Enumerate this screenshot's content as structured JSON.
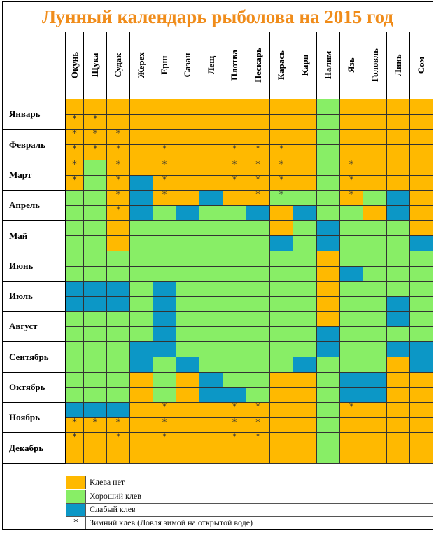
{
  "title": "Лунный календарь рыболова на 2015 год",
  "fish": [
    "Окунь",
    "Щука",
    "Судак",
    "Жерех",
    "Ерш",
    "Сазан",
    "Лещ",
    "Плотва",
    "Пескарь",
    "Карась",
    "Карп",
    "Налим",
    "Язь",
    "Головль",
    "Линь",
    "Сом"
  ],
  "months": [
    "Январь",
    "Февраль",
    "Март",
    "Апрель",
    "Май",
    "Июнь",
    "Июль",
    "Август",
    "Сентябрь",
    "Октябрь",
    "Ноябрь",
    "Декабрь"
  ],
  "grid_rows": [
    "NNNNNNNNNNNGNNNN",
    "NNNNNNNNNNNGNNNN",
    "NNNNNNNNNNNGNNNN",
    "NNNNNNNNNNNGNNNN",
    "NGNNNNNNNNNGNNNN",
    "NGNWNNNNNNNGNNNN",
    "GGNWNNWNNGGGNGWN",
    "GGNWGWGGWNWGGNWN",
    "GGNGGGGGGNGWGGGN",
    "GGNGGGGGGWGWGGGW",
    "GGGGGGGGGGGNGGGG",
    "GGGGGGGGGGGNWGGG",
    "WWWGWGGGGGGNGGGG",
    "WWWGWGGGGGGNGGWG",
    "GGGGWGGGGGGNGGWG",
    "GGGGWGGGGGGWGGGG",
    "GGGWWGGGGGGWGGWW",
    "GGGWGWGGGGWGGGNW",
    "GGGNGNWGGNNGWWNN",
    "GGGNGNWWGNNGWWNN",
    "WWWNNNNNNNNGNNNN",
    "NNNNNNNNNNNGNNNN",
    "NNNNNNNNNNNGNNNN",
    "NNNNNNNNNNNGNNNN"
  ],
  "star_rows": [
    "0000000000000000",
    "1100000000000000",
    "1110000000000000",
    "1110100111000000",
    "1010100111001000",
    "1010100111001000",
    "0010100011001000",
    "0010000000000000",
    "0000000000000000",
    "0000000000000000",
    "0000000000000000",
    "0000000000000000",
    "0000000000000000",
    "0000000000000000",
    "0000000000000000",
    "0000000000000000",
    "0000000000000000",
    "0000000000000000",
    "0000000000000000",
    "0000000000000000",
    "0000100110001000",
    "1110100110000000",
    "1010100110000000",
    "0000000000000000"
  ],
  "legend": {
    "none_label": "Клева нет",
    "good_label": "Хороший клев",
    "weak_label": "Слабый клев",
    "winter_symbol": "*",
    "winter_label": "Зимний клев (Ловля зимой на открытой воде)"
  },
  "colors": {
    "none": "#ffb900",
    "good": "#88ee66",
    "weak": "#0c97c6",
    "title": "#f08c1a"
  }
}
